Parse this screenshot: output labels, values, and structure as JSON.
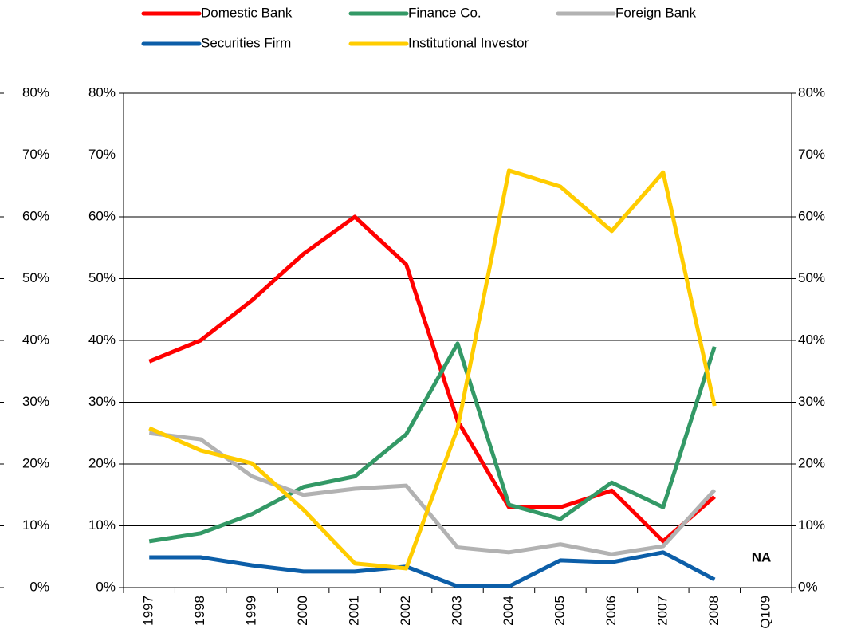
{
  "chart_data": {
    "type": "line",
    "categories": [
      "1997",
      "1998",
      "1999",
      "2000",
      "2001",
      "2002",
      "2003",
      "2004",
      "2005",
      "2006",
      "2007",
      "2008",
      "Q109"
    ],
    "series": [
      {
        "name": "Domestic Bank",
        "color": "#ff0000",
        "values": [
          36.6,
          40,
          46.5,
          54,
          60,
          52.3,
          27,
          13,
          13,
          15.7,
          7.5,
          14.7,
          null
        ]
      },
      {
        "name": "Finance Co.",
        "color": "#339966",
        "values": [
          7.5,
          8.8,
          11.9,
          16.3,
          18,
          24.8,
          39.5,
          13.4,
          11.1,
          17,
          13,
          39,
          null
        ]
      },
      {
        "name": "Foreign Bank",
        "color": "#b2b2b2",
        "values": [
          25,
          24,
          18,
          15,
          16,
          16.5,
          6.5,
          5.7,
          7,
          5.4,
          6.7,
          15.8,
          null
        ]
      },
      {
        "name": "Securities Firm",
        "color": "#0c5ea8",
        "values": [
          4.9,
          4.9,
          3.6,
          2.6,
          2.6,
          3.4,
          0.2,
          0.2,
          4.4,
          4.1,
          5.7,
          1.3,
          null
        ]
      },
      {
        "name": "Institutional Investor",
        "color": "#ffcc00",
        "values": [
          25.8,
          22.2,
          20.1,
          12.6,
          3.9,
          3.1,
          25.8,
          67.5,
          64.9,
          57.7,
          67.2,
          29.4,
          null
        ]
      }
    ],
    "ylim": [
      0,
      80
    ],
    "yticks": [
      {
        "value": 0,
        "label": "0%"
      },
      {
        "value": 10,
        "label": "10%"
      },
      {
        "value": 20,
        "label": "20%"
      },
      {
        "value": 30,
        "label": "30%"
      },
      {
        "value": 40,
        "label": "40%"
      },
      {
        "value": 50,
        "label": "50%"
      },
      {
        "value": 60,
        "label": "60%"
      },
      {
        "value": 70,
        "label": "70%"
      },
      {
        "value": 80,
        "label": "80%"
      }
    ],
    "y2lim": [
      0,
      80
    ],
    "y2ticks": [
      {
        "value": 0,
        "label": "0%"
      },
      {
        "value": 10,
        "label": "10%"
      },
      {
        "value": 20,
        "label": "20%"
      },
      {
        "value": 30,
        "label": "30%"
      },
      {
        "value": 40,
        "label": "40%"
      },
      {
        "value": 50,
        "label": "50%"
      },
      {
        "value": 60,
        "label": "60%"
      },
      {
        "value": 70,
        "label": "70%"
      },
      {
        "value": 80,
        "label": "80%"
      }
    ],
    "grid": true,
    "annotations": [
      "NA"
    ]
  }
}
